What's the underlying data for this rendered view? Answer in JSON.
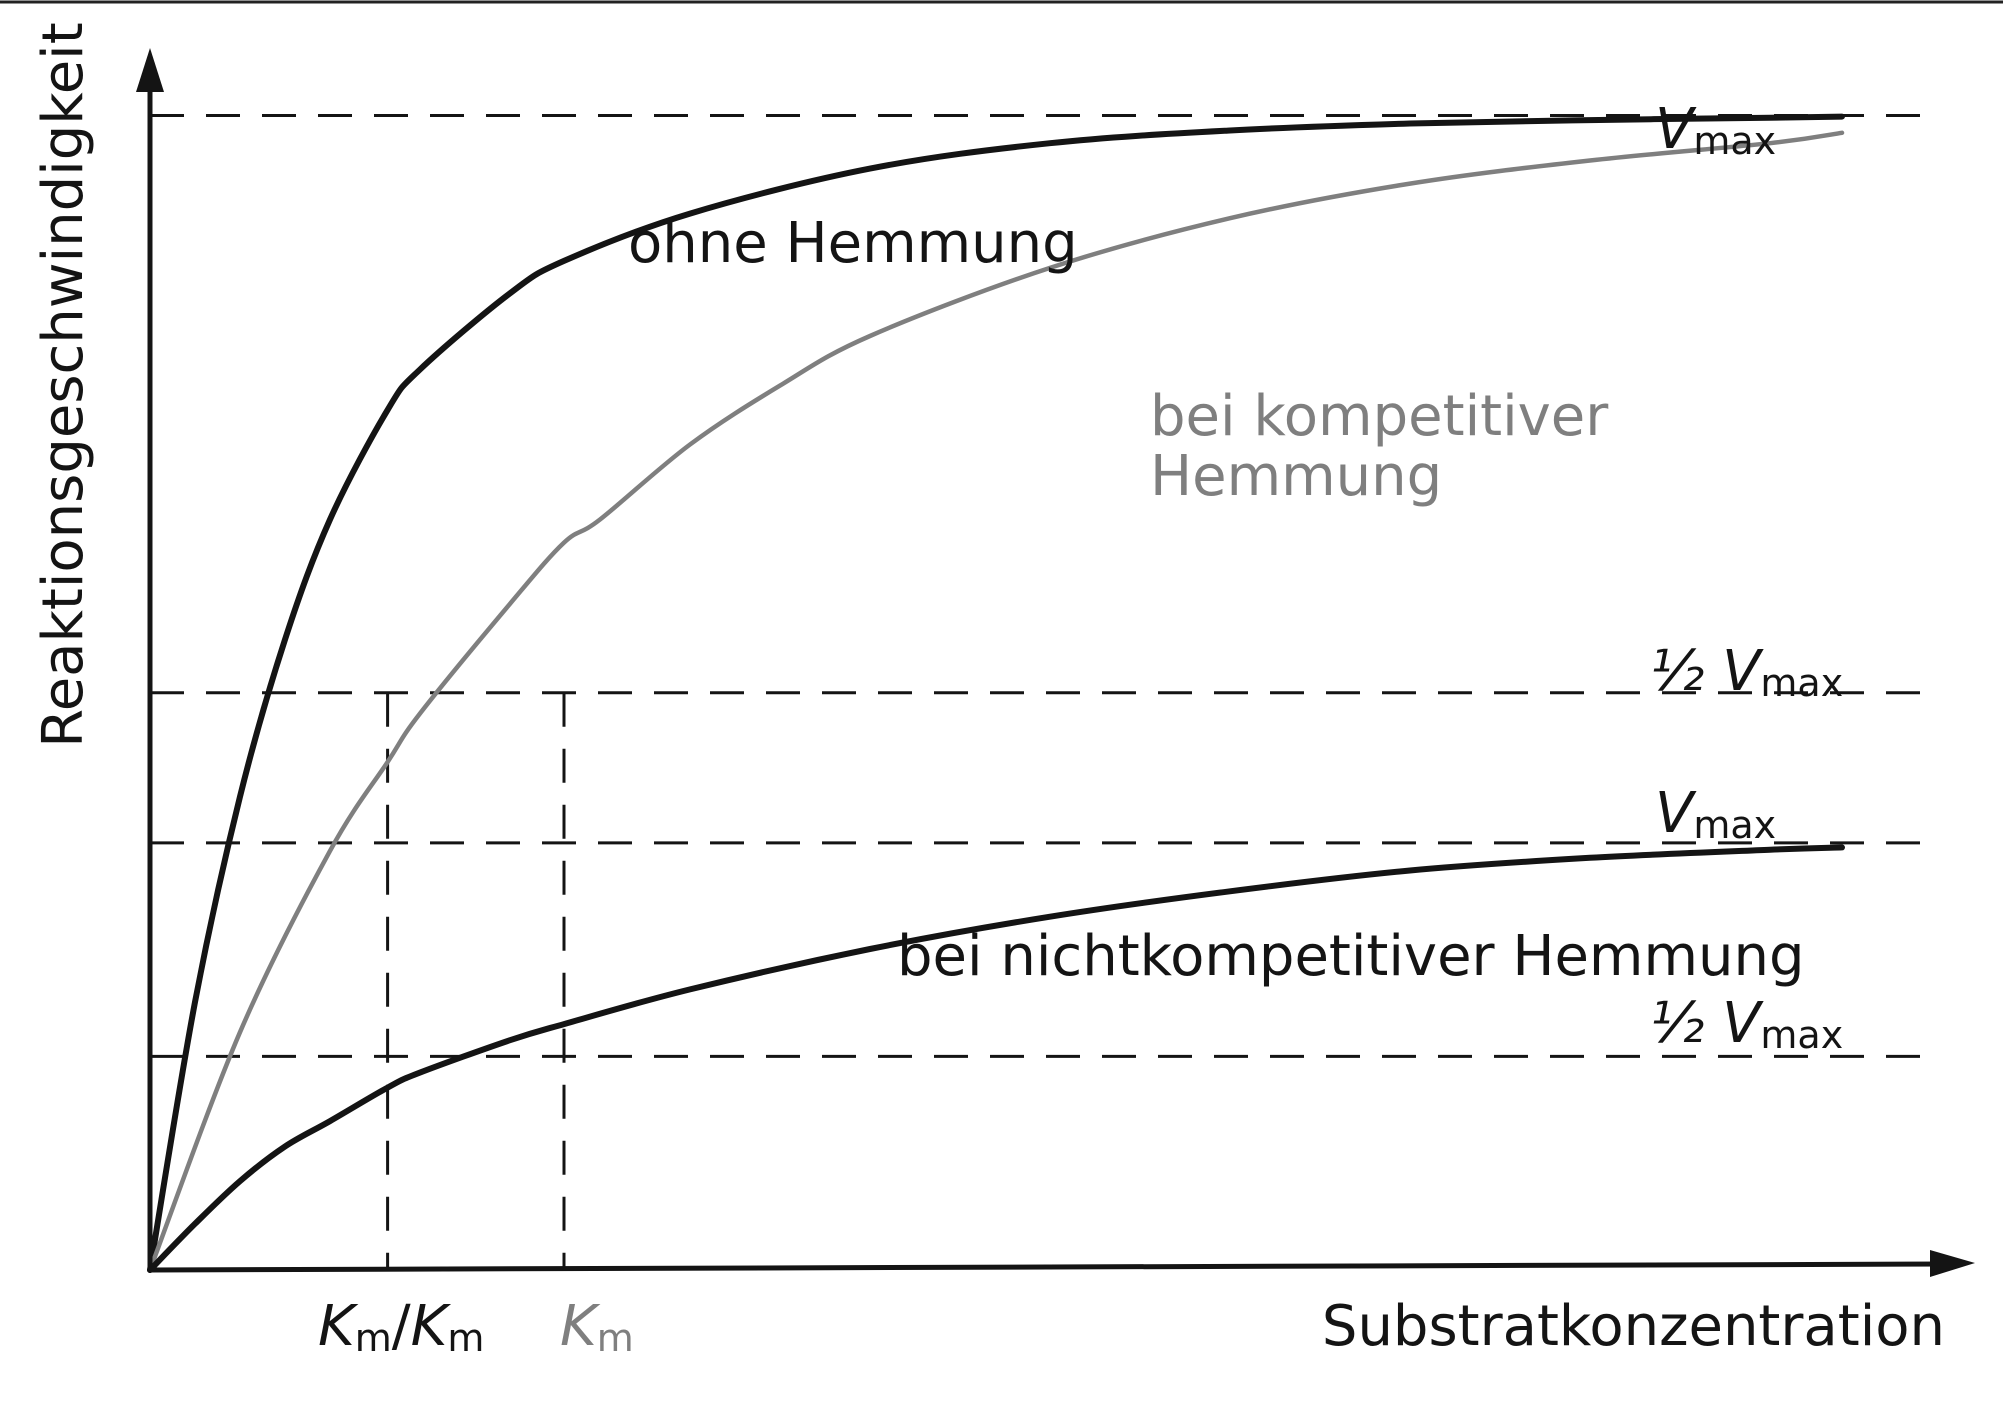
{
  "chart_data": {
    "type": "line",
    "title": "",
    "xlabel": "Substratkonzentration",
    "ylabel": "Reaktionsgeschwindigkeit",
    "xlim": [
      0,
      10
    ],
    "ylim": [
      0,
      1.1
    ],
    "grid": false,
    "colors": {
      "dark": "#141414",
      "gray": "#7f7f7f",
      "bg": "#ffffff"
    },
    "series": [
      {
        "label_text": "ohne Hemmung",
        "vmax": 1.0,
        "color": "#141414",
        "x": [
          0,
          0.25,
          0.5,
          0.75,
          1.0,
          1.32,
          1.5,
          2.0,
          2.3,
          3.0,
          4.0,
          5.0,
          6.0,
          7.0,
          8.0,
          9.0,
          9.4
        ],
        "y": [
          0,
          0.232,
          0.41,
          0.546,
          0.65,
          0.745,
          0.78,
          0.846,
          0.874,
          0.915,
          0.954,
          0.976,
          0.987,
          0.993,
          0.996,
          0.998,
          0.999
        ]
      },
      {
        "label_text": [
          "bei kompetitiver",
          "Hemmung"
        ],
        "vmax": 1.0,
        "color": "#7f7f7f",
        "x": [
          0,
          0.5,
          1.0,
          1.32,
          1.5,
          2.0,
          2.3,
          2.5,
          3.0,
          3.5,
          4.0,
          5.0,
          6.0,
          7.0,
          8.0,
          9.0,
          9.4
        ],
        "y": [
          0,
          0.206,
          0.363,
          0.44,
          0.482,
          0.577,
          0.63,
          0.65,
          0.715,
          0.766,
          0.809,
          0.868,
          0.911,
          0.941,
          0.961,
          0.976,
          0.985
        ]
      },
      {
        "label_text": "bei nichtkompetitiver Hemmung",
        "vmax": 0.37,
        "color": "#141414",
        "x": [
          0,
          0.25,
          0.5,
          0.75,
          1.0,
          1.32,
          1.5,
          2.0,
          2.3,
          3.0,
          4.0,
          5.0,
          6.0,
          7.0,
          8.0,
          9.0,
          9.4
        ],
        "y": [
          0,
          0.04,
          0.077,
          0.107,
          0.129,
          0.158,
          0.171,
          0.199,
          0.213,
          0.243,
          0.278,
          0.306,
          0.328,
          0.346,
          0.357,
          0.364,
          0.366
        ]
      }
    ],
    "reference_lines": {
      "vmax_text": "V",
      "vmax_sub": "max",
      "half_vmax_text": "½ V",
      "half_vmax_sub": "max",
      "y_levels": [
        1.0,
        0.5,
        0.37,
        0.185
      ]
    },
    "x_markers": [
      {
        "x": 1.32,
        "labels": [
          {
            "main": "K",
            "sub": "m",
            "sep": "/",
            "color": "#141414"
          },
          {
            "main": "K",
            "sub": "m",
            "color": "#141414"
          }
        ]
      },
      {
        "x": 2.3,
        "labels": [
          {
            "main": "K",
            "sub": "m",
            "color": "#7f7f7f"
          }
        ]
      }
    ]
  }
}
